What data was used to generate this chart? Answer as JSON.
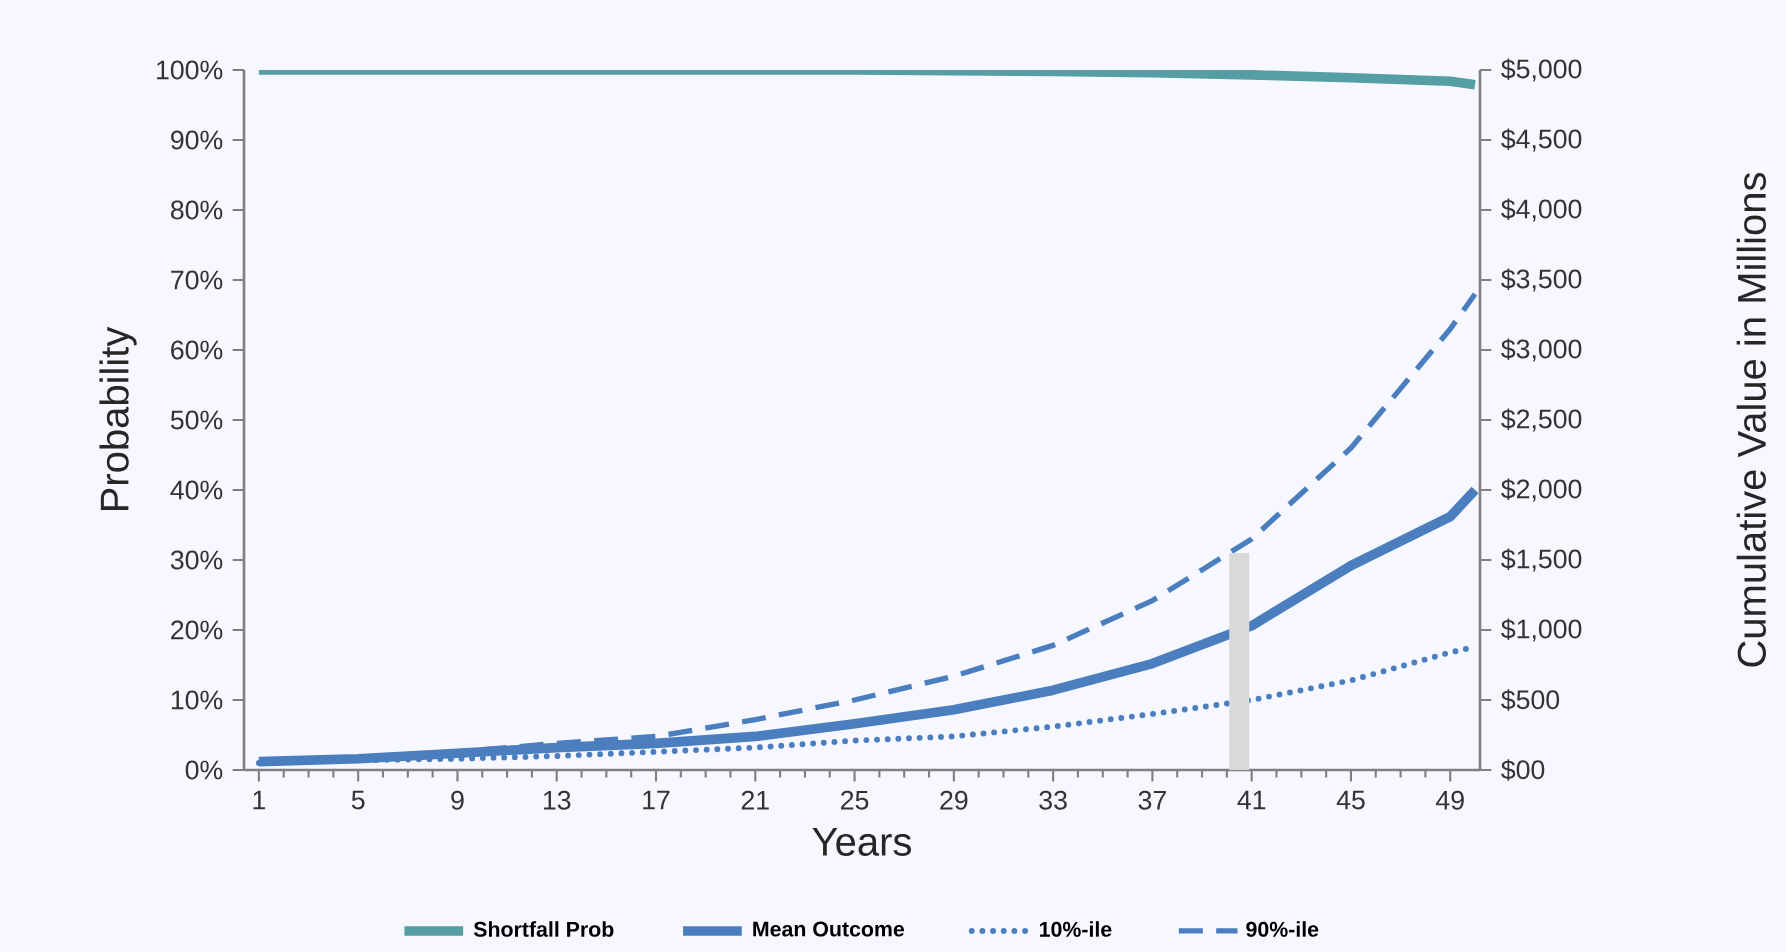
{
  "chart_data": {
    "type": "line",
    "xlabel": "Years",
    "ylabel": "Probability",
    "y2label": "Cumulative Value in Millions",
    "x": [
      1,
      5,
      9,
      13,
      17,
      21,
      25,
      29,
      33,
      37,
      41,
      45,
      49,
      50
    ],
    "xlim": [
      0.4,
      50.2
    ],
    "xticks": [
      1,
      5,
      9,
      13,
      17,
      21,
      25,
      29,
      33,
      37,
      41,
      45,
      49
    ],
    "ylim": [
      0,
      100
    ],
    "yticks": [
      {
        "value": 0,
        "label": "0%"
      },
      {
        "value": 10,
        "label": "10%"
      },
      {
        "value": 20,
        "label": "20%"
      },
      {
        "value": 30,
        "label": "30%"
      },
      {
        "value": 40,
        "label": "40%"
      },
      {
        "value": 50,
        "label": "50%"
      },
      {
        "value": 60,
        "label": "60%"
      },
      {
        "value": 70,
        "label": "70%"
      },
      {
        "value": 80,
        "label": "80%"
      },
      {
        "value": 90,
        "label": "90%"
      },
      {
        "value": 100,
        "label": "100%"
      }
    ],
    "y2lim": [
      0,
      5000
    ],
    "y2ticks": [
      {
        "value": 0,
        "label": "$00"
      },
      {
        "value": 500,
        "label": "$500"
      },
      {
        "value": 1000,
        "label": "$1,000"
      },
      {
        "value": 1500,
        "label": "$1,500"
      },
      {
        "value": 2000,
        "label": "$2,000"
      },
      {
        "value": 2500,
        "label": "$2,500"
      },
      {
        "value": 3000,
        "label": "$3,000"
      },
      {
        "value": 3500,
        "label": "$3,500"
      },
      {
        "value": 4000,
        "label": "$4,000"
      },
      {
        "value": 4500,
        "label": "$4,500"
      },
      {
        "value": 5000,
        "label": "$5,000"
      }
    ],
    "legend": "bottom",
    "grid": false,
    "series": [
      {
        "name": "Shortfall Prob",
        "axis": "y",
        "line_style": "solid",
        "color": "#559ea3",
        "values": [
          100,
          100,
          100,
          100,
          100,
          100,
          100,
          99.9,
          99.8,
          99.6,
          99.3,
          98.9,
          98.4,
          97.9
        ]
      },
      {
        "name": "Mean Outcome",
        "axis": "y2",
        "line_style": "solid",
        "color": "#4a7ebf",
        "values": [
          60,
          80,
          120,
          160,
          190,
          240,
          330,
          430,
          570,
          760,
          1030,
          1460,
          1810,
          2000
        ]
      },
      {
        "name": "10%-ile",
        "axis": "y2",
        "line_style": "dotted",
        "color": "#4a7ebf",
        "values": [
          50,
          70,
          80,
          100,
          130,
          160,
          210,
          240,
          310,
          400,
          500,
          640,
          840,
          880
        ]
      },
      {
        "name": "90%-ile",
        "axis": "y2",
        "line_style": "dashed",
        "color": "#4a7ebf",
        "values": [
          60,
          80,
          130,
          190,
          240,
          360,
          500,
          670,
          890,
          1210,
          1650,
          2300,
          3150,
          3400
        ]
      },
      {
        "type": "bar",
        "axis": "y2",
        "color": "#d9d9d9",
        "x": [
          40.5
        ],
        "values": [
          1550
        ]
      }
    ]
  }
}
